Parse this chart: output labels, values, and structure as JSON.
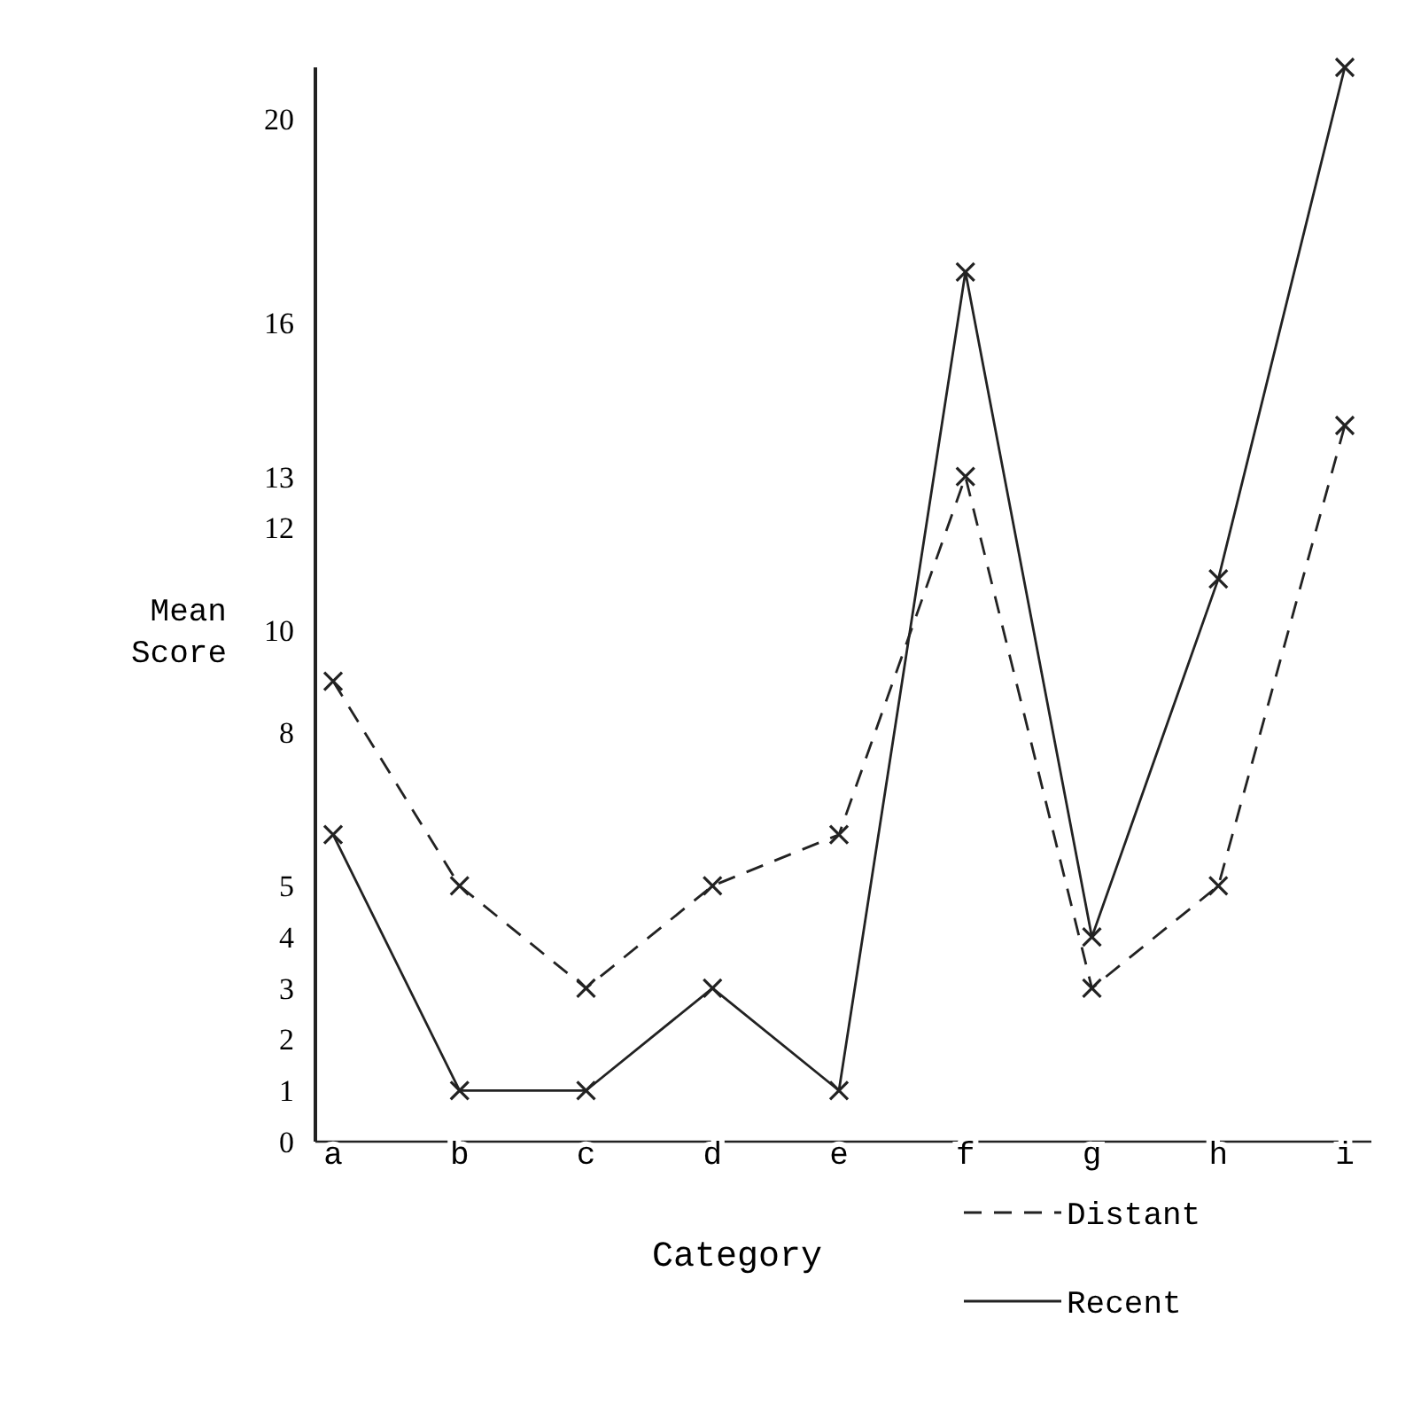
{
  "chart_data": {
    "type": "line",
    "xlabel": "Category",
    "ylabel": "Mean Score",
    "categories": [
      "a",
      "b",
      "c",
      "d",
      "e",
      "f",
      "g",
      "h",
      "i"
    ],
    "series": [
      {
        "name": "Distant",
        "color": "#222222",
        "line_style": "dashed",
        "values": [
          9,
          5,
          3,
          5,
          6,
          13,
          3,
          5,
          14
        ]
      },
      {
        "name": "Recent",
        "color": "#222222",
        "line_style": "solid",
        "values": [
          6,
          1,
          1,
          3,
          1,
          17,
          4,
          11,
          21
        ]
      }
    ],
    "ylim": [
      0,
      21
    ],
    "yticks": [
      0,
      1,
      2,
      3,
      4,
      5,
      8,
      10,
      12,
      13,
      16,
      20
    ],
    "marker": "cross",
    "legend": "bottom right",
    "grid": false
  }
}
